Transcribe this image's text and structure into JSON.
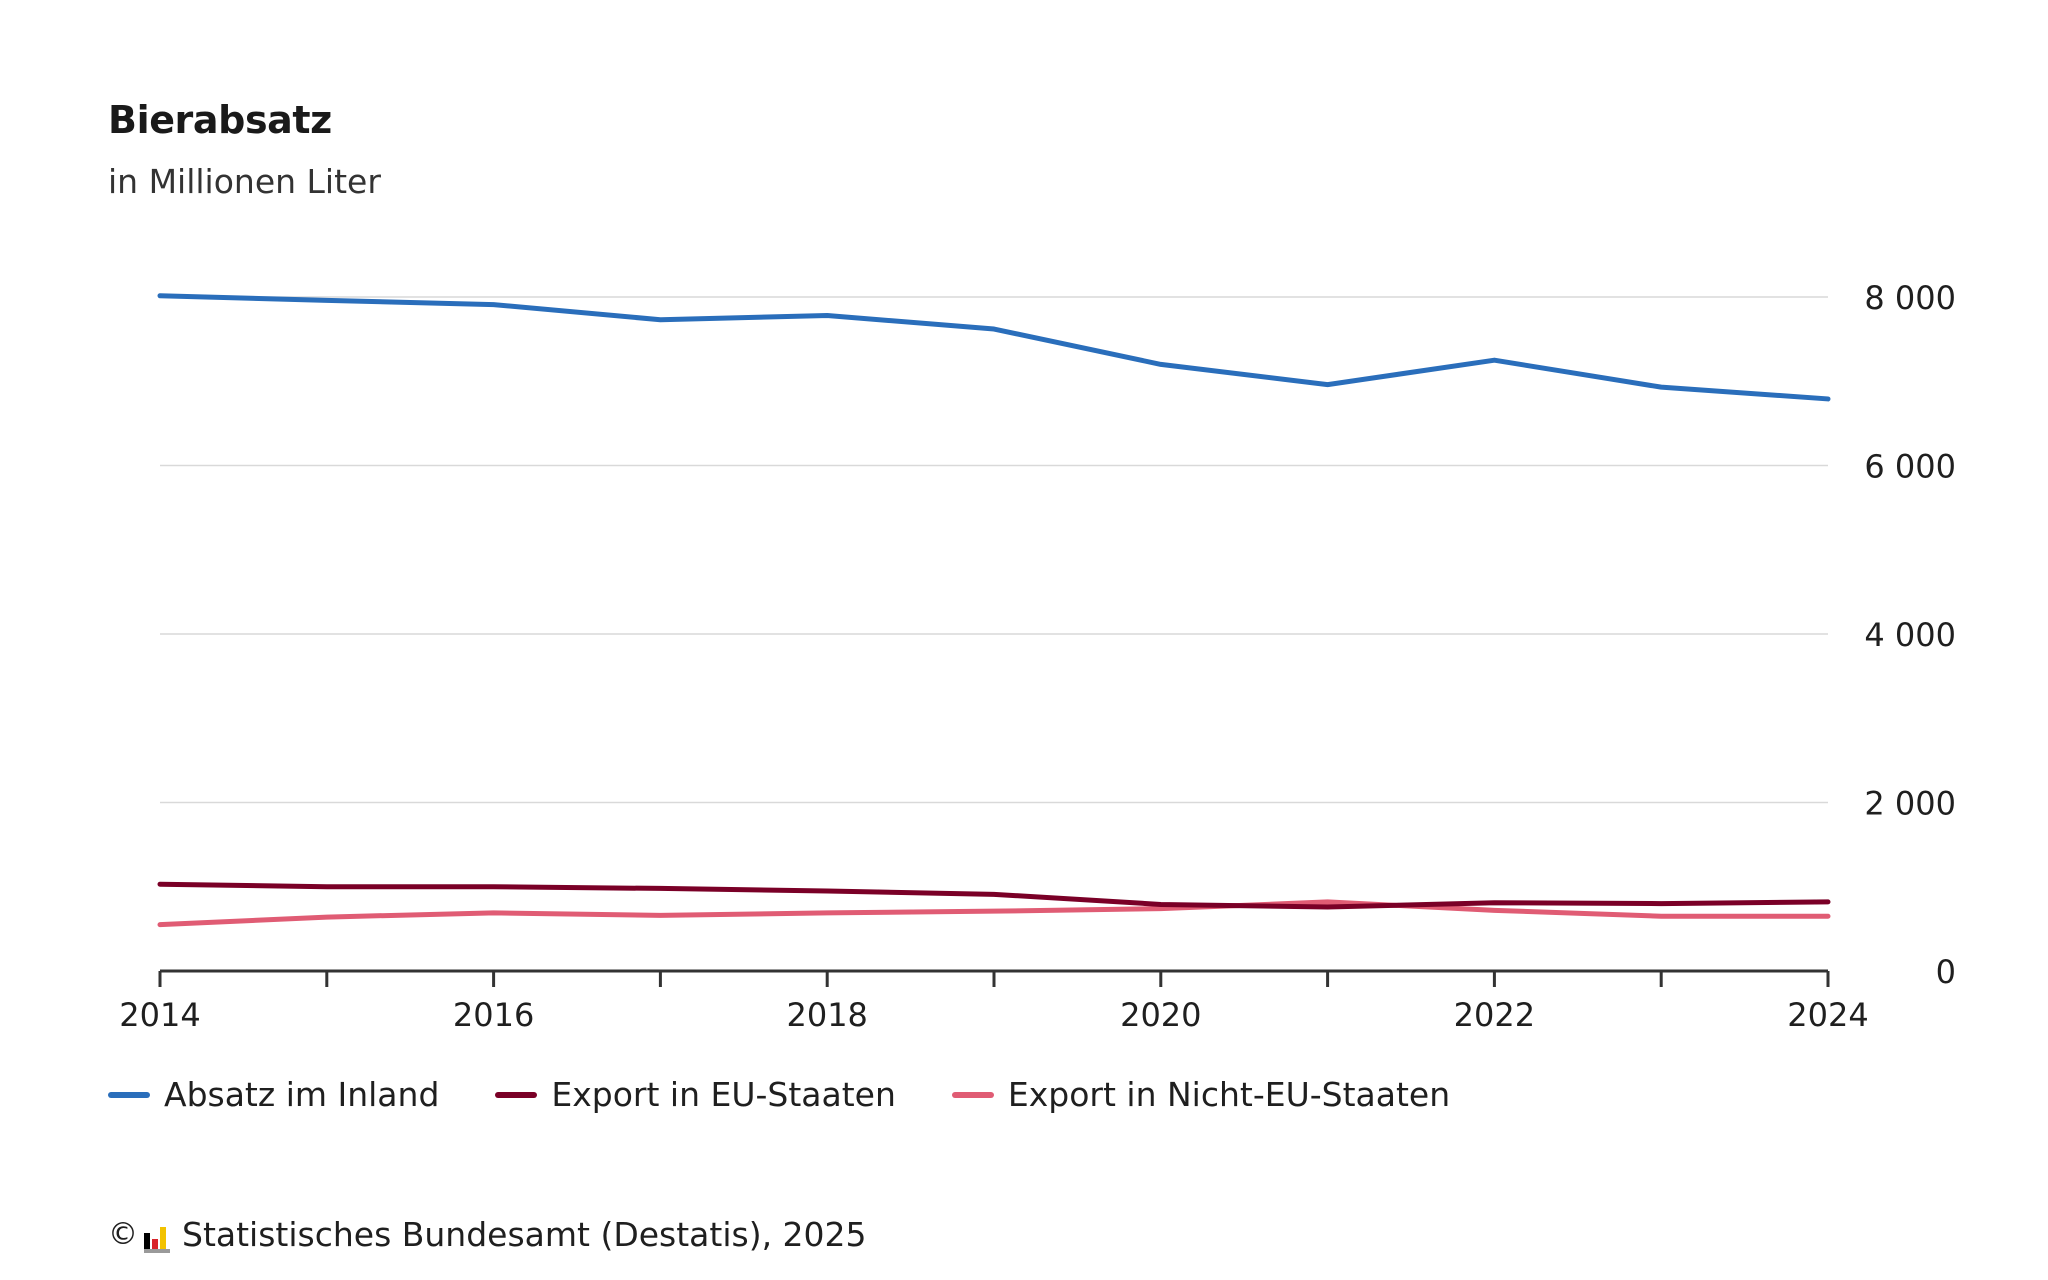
{
  "header": {
    "title": "Bierabsatz",
    "subtitle": "in Millionen Liter"
  },
  "footer": {
    "copyright_symbol": "©",
    "source": "Statistisches Bundesamt (Destatis), 2025",
    "logo_icon": "destatis-logo-icon"
  },
  "chart_data": {
    "type": "line",
    "title": "Bierabsatz",
    "subtitle": "in Millionen Liter",
    "xlabel": "",
    "ylabel": "",
    "x": [
      2014,
      2015,
      2016,
      2017,
      2018,
      2019,
      2020,
      2021,
      2022,
      2023,
      2024
    ],
    "x_ticks": [
      "2014",
      "2016",
      "2018",
      "2020",
      "2022",
      "2024"
    ],
    "y_ticks": [
      0,
      2000,
      4000,
      6000,
      8000
    ],
    "y_tick_labels": [
      "0",
      "2 000",
      "4 000",
      "6 000",
      "8 000"
    ],
    "ylim": [
      0,
      8000
    ],
    "grid": true,
    "y_axis_side": "right",
    "legend_position": "bottom",
    "series": [
      {
        "name": "Absatz im Inland",
        "color": "#2a6ebb",
        "values": [
          8015,
          7960,
          7910,
          7730,
          7780,
          7620,
          7200,
          6960,
          7250,
          6930,
          6790
        ]
      },
      {
        "name": "Export in EU-Staaten",
        "color": "#7a0027",
        "values": [
          1030,
          1000,
          1000,
          980,
          950,
          910,
          790,
          760,
          810,
          800,
          820
        ]
      },
      {
        "name": "Export in Nicht-EU-Staaten",
        "color": "#e05c74",
        "values": [
          550,
          640,
          690,
          660,
          690,
          710,
          740,
          820,
          720,
          650,
          650
        ]
      }
    ]
  }
}
